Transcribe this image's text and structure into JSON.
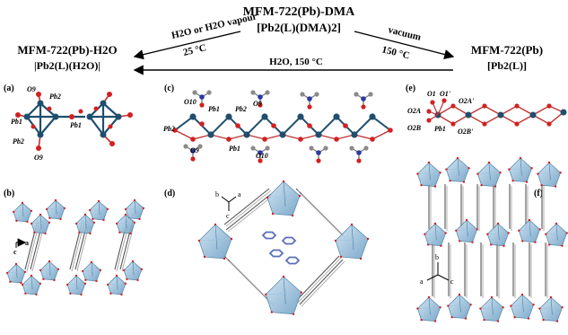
{
  "header": {
    "center_title": "MFM-722(Pb)-DMA",
    "center_formula": "[Pb2(L)(DMA)2]",
    "left_title": "MFM-722(Pb)-H2O",
    "left_formula": "|Pb2(L)(H2O)|",
    "right_title": "MFM-722(Pb)",
    "right_formula": "[Pb2(L)]",
    "arrow_left_top": "H2O or H2O vapour",
    "arrow_left_bottom": "25 °C",
    "arrow_right_top": "vacuum",
    "arrow_right_bottom": "150 °C",
    "arrow_bottom": "H2O, 150 °C"
  },
  "panels": {
    "a": "(a)",
    "b": "(b)",
    "c": "(c)",
    "d": "(d)",
    "e": "(e)",
    "f": "(f)"
  },
  "atom_labels_a": [
    "O9",
    "Pb2",
    "Pb1",
    "Pb1",
    "Pb2",
    "O9"
  ],
  "atom_labels_c": [
    "O10",
    "O9",
    "Pb1",
    "Pb2",
    "Pb2",
    "Pb1",
    "O9",
    "O10"
  ],
  "atom_labels_e": [
    "O1",
    "O1'",
    "O2A",
    "O2A'",
    "O2B",
    "Pb1",
    "O2B'"
  ],
  "axes": {
    "b_panel": [
      "a",
      "c"
    ],
    "d_panel": [
      "b",
      "a",
      "c"
    ],
    "f_panel": [
      "b",
      "a",
      "c"
    ]
  },
  "colors": {
    "pb": "#1f4e6e",
    "o": "#d42020",
    "n": "#2a3aa0",
    "c": "#8a8a8a",
    "poly": "#7fb2d6",
    "poly_edge": "#4a7fa8",
    "ring": "#5a6fb8"
  }
}
